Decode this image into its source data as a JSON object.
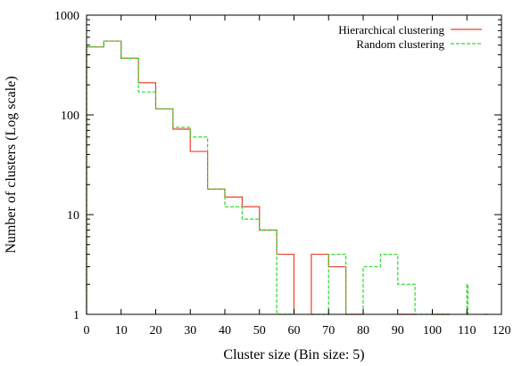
{
  "chart_data": {
    "type": "line",
    "style": "step histogram",
    "xlabel": "Cluster size (Bin size: 5)",
    "ylabel": "Number of clusters (Log scale)",
    "xlim": [
      0,
      120
    ],
    "ylim": [
      1,
      1000
    ],
    "yscale": "log",
    "x_ticks": [
      0,
      10,
      20,
      30,
      40,
      50,
      60,
      70,
      80,
      90,
      100,
      110,
      120
    ],
    "y_ticks": [
      1,
      10,
      100,
      1000
    ],
    "grid": false,
    "legend_position": "top-right",
    "series": [
      {
        "name": "Hierarchical clustering",
        "color": "#e8412c",
        "dash": "solid",
        "bins": [
          {
            "x0": 0,
            "x1": 5,
            "value": 480
          },
          {
            "x0": 5,
            "x1": 10,
            "value": 550
          },
          {
            "x0": 10,
            "x1": 15,
            "value": 370
          },
          {
            "x0": 15,
            "x1": 20,
            "value": 210
          },
          {
            "x0": 20,
            "x1": 25,
            "value": 115
          },
          {
            "x0": 25,
            "x1": 30,
            "value": 72
          },
          {
            "x0": 30,
            "x1": 35,
            "value": 43
          },
          {
            "x0": 35,
            "x1": 40,
            "value": 18
          },
          {
            "x0": 40,
            "x1": 45,
            "value": 15
          },
          {
            "x0": 45,
            "x1": 50,
            "value": 12
          },
          {
            "x0": 50,
            "x1": 55,
            "value": 7
          },
          {
            "x0": 55,
            "x1": 60,
            "value": 4
          },
          {
            "x0": 65,
            "x1": 70,
            "value": 4
          },
          {
            "x0": 70,
            "x1": 75,
            "value": 3
          },
          {
            "x0": 75,
            "x1": 80,
            "value": 1
          },
          {
            "x0": 90,
            "x1": 95,
            "value": 1
          },
          {
            "x0": 100,
            "x1": 105,
            "value": 1
          },
          {
            "x0": 115,
            "x1": 116,
            "value": 1
          }
        ]
      },
      {
        "name": "Random clustering",
        "color": "#2cdc2c",
        "dash": "dashed",
        "bins": [
          {
            "x0": 0,
            "x1": 5,
            "value": 480
          },
          {
            "x0": 5,
            "x1": 10,
            "value": 550
          },
          {
            "x0": 10,
            "x1": 15,
            "value": 370
          },
          {
            "x0": 15,
            "x1": 20,
            "value": 170
          },
          {
            "x0": 20,
            "x1": 25,
            "value": 115
          },
          {
            "x0": 25,
            "x1": 30,
            "value": 75
          },
          {
            "x0": 30,
            "x1": 35,
            "value": 60
          },
          {
            "x0": 35,
            "x1": 40,
            "value": 18
          },
          {
            "x0": 40,
            "x1": 45,
            "value": 12
          },
          {
            "x0": 45,
            "x1": 50,
            "value": 9
          },
          {
            "x0": 50,
            "x1": 55,
            "value": 7
          },
          {
            "x0": 55,
            "x1": 60,
            "value": 1
          },
          {
            "x0": 65,
            "x1": 70,
            "value": 1
          },
          {
            "x0": 70,
            "x1": 75,
            "value": 4
          },
          {
            "x0": 80,
            "x1": 85,
            "value": 3
          },
          {
            "x0": 85,
            "x1": 90,
            "value": 4
          },
          {
            "x0": 90,
            "x1": 95,
            "value": 2
          },
          {
            "x0": 95,
            "x1": 100,
            "value": 1
          },
          {
            "x0": 100,
            "x1": 105,
            "value": 1
          },
          {
            "x0": 110,
            "x1": 110.3,
            "value": 2
          }
        ]
      }
    ]
  }
}
